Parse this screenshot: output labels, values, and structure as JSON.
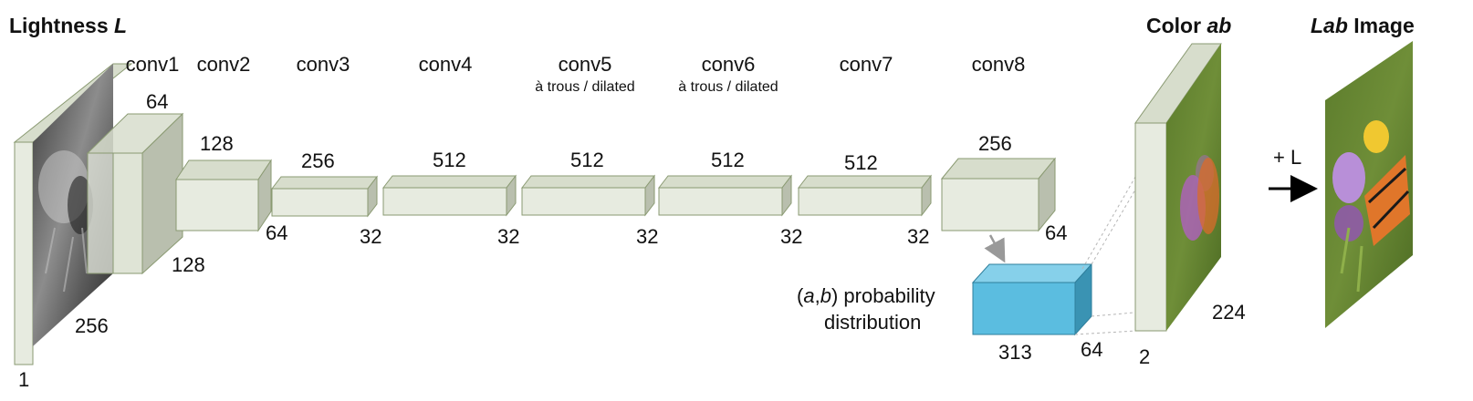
{
  "input": {
    "title_prefix": "Lightness ",
    "title_symbol": "L",
    "height": "256",
    "channels": "1"
  },
  "layers": [
    {
      "name": "conv1",
      "channels": "64",
      "spatial": "128"
    },
    {
      "name": "conv2",
      "channels": "128",
      "spatial": "64"
    },
    {
      "name": "conv3",
      "channels": "256",
      "spatial": "32"
    },
    {
      "name": "conv4",
      "channels": "512",
      "spatial": "32"
    },
    {
      "name": "conv5",
      "note": "à trous / dilated",
      "channels": "512",
      "spatial": "32"
    },
    {
      "name": "conv6",
      "note": "à trous / dilated",
      "channels": "512",
      "spatial": "32"
    },
    {
      "name": "conv7",
      "channels": "512",
      "spatial": "32"
    },
    {
      "name": "conv8",
      "channels": "256",
      "spatial": "64"
    }
  ],
  "distribution": {
    "label_open": "(",
    "label_a": "a",
    "label_comma": ",",
    "label_b": "b",
    "label_rest": ") probability",
    "label_line2": "distribution",
    "depth": "313",
    "spatial": "64"
  },
  "color_output": {
    "title_prefix": "Color ",
    "title_symbol": "ab",
    "size": "224",
    "channels": "2"
  },
  "arrow_label": "+ L",
  "lab_output": {
    "title_symbol": "Lab",
    "title_suffix": " Image"
  },
  "colors": {
    "block_front": "#e7ebe0",
    "block_top": "#d7ddcc",
    "block_side": "#b9bfae",
    "block_edge": "#8a9a72",
    "dist_front": "#5bbde0",
    "dist_top": "#86d0ea",
    "dist_side": "#3a93b3",
    "arrow": "#999999"
  }
}
